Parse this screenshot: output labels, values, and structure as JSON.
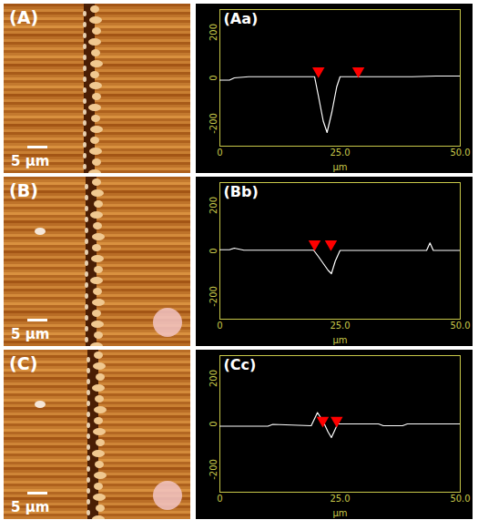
{
  "chart_data": [
    {
      "type": "image",
      "title": "(A)",
      "annotations": [
        "5 µm"
      ]
    },
    {
      "type": "line",
      "title": "(Aa)",
      "xlabel": "µm",
      "xlim": [
        0,
        50
      ],
      "xticks": [
        0,
        {
          "value": 25,
          "label": "25.0"
        },
        {
          "value": 50,
          "label": "50.0"
        }
      ],
      "ylim": [
        -300,
        300
      ],
      "yticks": [
        -200,
        0,
        200
      ],
      "series": [
        {
          "type": "line",
          "color": "#ffffff",
          "x": [
            0,
            2,
            3,
            6,
            10,
            15,
            19.7,
            20.5,
            21.5,
            22.3,
            23.3,
            24.3,
            25,
            26,
            30,
            35,
            40,
            45,
            50
          ],
          "values": [
            -10,
            -10,
            0,
            5,
            5,
            5,
            5,
            -80,
            -190,
            -240,
            -150,
            -40,
            5,
            5,
            5,
            5,
            5,
            8,
            8
          ]
        },
        {
          "type": "scatter",
          "color": "#ff0000",
          "marker": "triangle",
          "x": [
            20.5,
            28.8
          ],
          "values": [
            30,
            30
          ]
        }
      ]
    },
    {
      "type": "image",
      "title": "(B)",
      "annotations": [
        "5 µm"
      ]
    },
    {
      "type": "line",
      "title": "(Bb)",
      "xlabel": "µm",
      "xlim": [
        0,
        50
      ],
      "xticks": [
        0,
        {
          "value": 25,
          "label": "25.0"
        },
        {
          "value": 50,
          "label": "50.0"
        }
      ],
      "ylim": [
        -300,
        300
      ],
      "yticks": [
        -200,
        0,
        200
      ],
      "series": [
        {
          "type": "line",
          "color": "#ffffff",
          "x": [
            0,
            2,
            3,
            5,
            10,
            15,
            19.5,
            20.5,
            21.5,
            22.5,
            23.2,
            24,
            25,
            30,
            35,
            40,
            43,
            43.7,
            44.4,
            46,
            50
          ],
          "values": [
            5,
            5,
            12,
            3,
            3,
            3,
            3,
            -25,
            -55,
            -85,
            -100,
            -45,
            2,
            2,
            2,
            2,
            2,
            35,
            2,
            2,
            2
          ]
        },
        {
          "type": "scatter",
          "color": "#ff0000",
          "marker": "triangle",
          "x": [
            19.7,
            23.1
          ],
          "values": [
            30,
            30
          ]
        }
      ]
    },
    {
      "type": "image",
      "title": "(C)",
      "annotations": [
        "5 µm"
      ]
    },
    {
      "type": "line",
      "title": "(Cc)",
      "xlabel": "µm",
      "xlim": [
        0,
        50
      ],
      "xticks": [
        0,
        {
          "value": 25,
          "label": "25.0"
        },
        {
          "value": 50,
          "label": "50.0"
        }
      ],
      "ylim": [
        -300,
        300
      ],
      "yticks": [
        -200,
        0,
        200
      ],
      "series": [
        {
          "type": "line",
          "color": "#ffffff",
          "x": [
            0,
            5,
            10,
            11,
            15,
            19,
            20.3,
            21.5,
            22.5,
            23.2,
            24.5,
            27,
            33,
            34,
            38,
            39,
            45,
            50
          ],
          "values": [
            -10,
            -10,
            -10,
            -2,
            -5,
            -8,
            50,
            10,
            -35,
            -60,
            0,
            0,
            0,
            -8,
            -8,
            0,
            0,
            0
          ]
        },
        {
          "type": "scatter",
          "color": "#ff0000",
          "marker": "triangle",
          "x": [
            21.4,
            24.3
          ],
          "values": [
            15,
            15
          ]
        }
      ]
    }
  ]
}
